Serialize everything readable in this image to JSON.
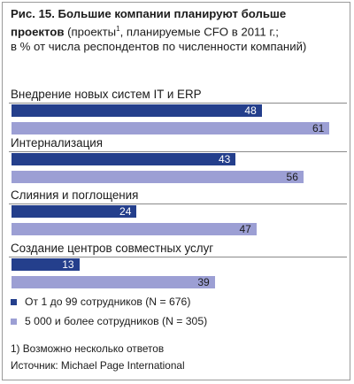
{
  "title": {
    "bold_line1": "Рис. 15. Большие компании планируют больше",
    "bold_line2": "проектов",
    "rest_line2": " (проекты",
    "footnote_mark": "1",
    "rest_line2b": ", планируемые CFO в 2011 г.;",
    "line3": "в % от числа респондентов по численности компаний)"
  },
  "colors": {
    "series_small": "#243f8c",
    "series_large": "#9c9fd4"
  },
  "chart_data": {
    "type": "bar",
    "orientation": "horizontal",
    "title": "Рис. 15. Большие компании планируют больше проектов (проекты¹, планируемые CFO в 2011 г.; в % от числа респондентов по численности компаний)",
    "categories": [
      "Внедрение новых систем IT и ERP",
      "Интернализация",
      "Слияния и поглощения",
      "Создание центров совместных услуг"
    ],
    "series": [
      {
        "name": "От 1 до 99 сотрудников (N = 676)",
        "values": [
          48,
          43,
          24,
          13
        ]
      },
      {
        "name": "5 000 и более сотрудников (N = 305)",
        "values": [
          61,
          56,
          47,
          39
        ]
      }
    ],
    "xlim": [
      0,
      64
    ],
    "grid": false,
    "legend_position": "bottom-left",
    "data_labels": true
  },
  "legend": [
    "От 1 до 99 сотрудников (N = 676)",
    "5 000 и более сотрудников (N = 305)"
  ],
  "footnote": "1)  Возможно несколько ответов",
  "source": "Источник: Michael Page International"
}
